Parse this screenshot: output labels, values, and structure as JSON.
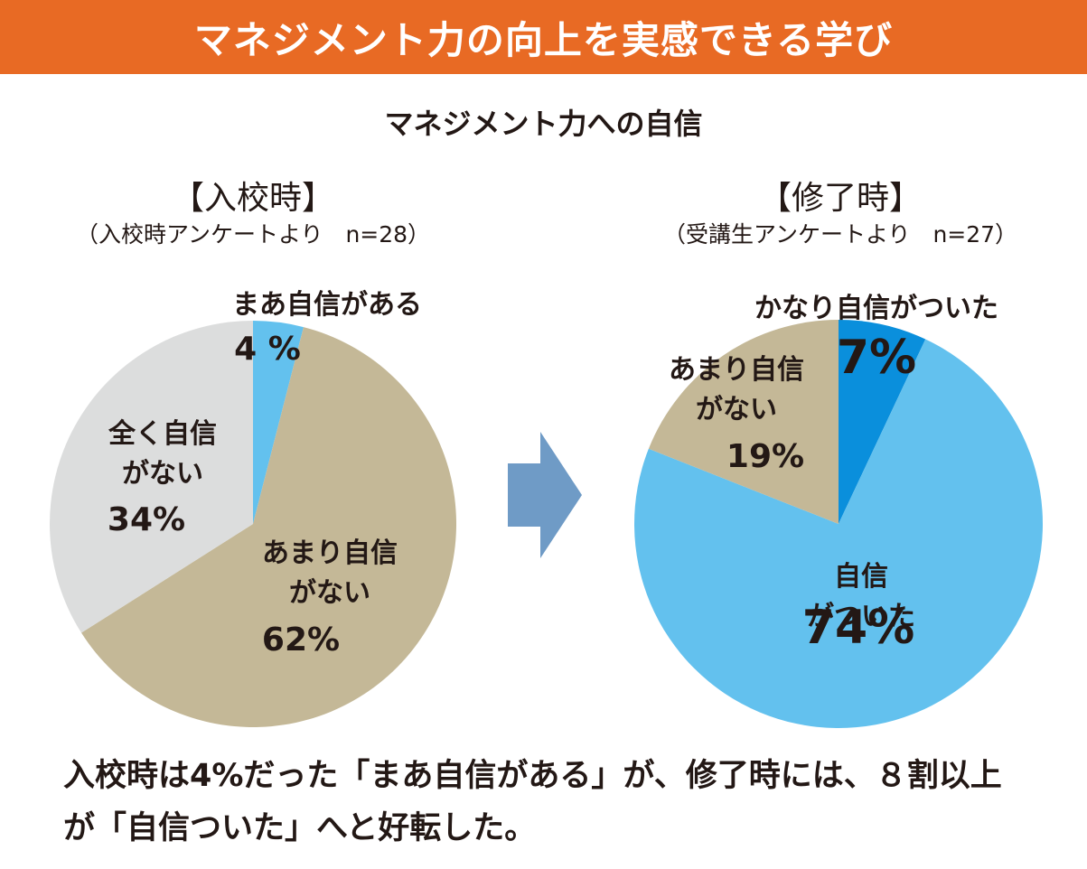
{
  "header": {
    "title": "マネジメント力の向上を実感できる学び",
    "subtitle": "マネジメント力への自信"
  },
  "colors": {
    "banner": "#e86a24",
    "light_blue": "#63c1ee",
    "dark_blue": "#0a8fdc",
    "tan": "#c4b897",
    "gray": "#dcdddd",
    "arrow": "#6f9bc6"
  },
  "arrow_icon": "right-arrow-icon",
  "chart_data": [
    {
      "type": "pie",
      "title": "【入校時】",
      "note": "（入校時アンケートより　n=28）",
      "slices": [
        {
          "label": "まあ自信がある",
          "value": 4,
          "value_label": "4 %",
          "color": "#63c1ee"
        },
        {
          "label": "あまり自信がない",
          "value": 62,
          "value_label": "62%",
          "color": "#c4b897"
        },
        {
          "label": "全く自信がない",
          "value": 34,
          "value_label": "34%",
          "color": "#dcdddd"
        }
      ]
    },
    {
      "type": "pie",
      "title": "【修了時】",
      "note": "（受講生アンケートより　n=27）",
      "slices": [
        {
          "label": "かなり自信がついた",
          "value": 7,
          "value_label": "7%",
          "color": "#0a8fdc"
        },
        {
          "label": "自信がついた",
          "value": 74,
          "value_label": "74%",
          "color": "#63c1ee"
        },
        {
          "label": "あまり自信がない",
          "value": 19,
          "value_label": "19%",
          "color": "#c4b897"
        }
      ]
    }
  ],
  "footer": {
    "line1": "入校時は4%だった「まあ自信がある」が、修了時には、８割以上",
    "line2": "が「自信ついた」へと好転した。"
  }
}
